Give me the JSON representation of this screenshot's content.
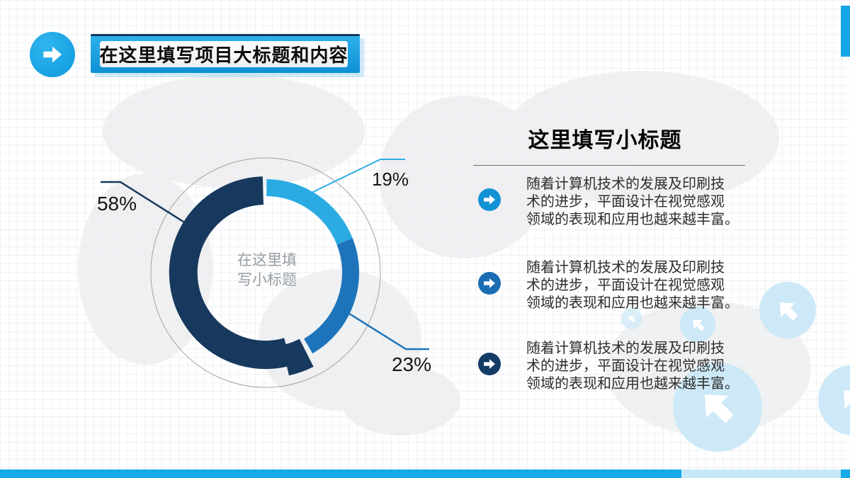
{
  "header": {
    "title": "在这里填写项目大标题和内容"
  },
  "chart_data": {
    "type": "donut",
    "units": "percent",
    "start_at": "top",
    "direction": "clockwise",
    "outer_guide_ring": true,
    "center_lines": [
      "在这里填",
      "写小标题"
    ],
    "center_label": "在这里填写小标题",
    "segments": [
      {
        "label": "19%",
        "value": 19,
        "color": "#2aabe2"
      },
      {
        "label": "23%",
        "value": 23,
        "color": "#1d74ba"
      },
      {
        "label": "58%",
        "value": 58,
        "color": "#17395e"
      }
    ]
  },
  "panel": {
    "title": "这里填写小标题",
    "bullets": [
      {
        "icon": "arrow-right-circle",
        "icon_color": "#1292d5",
        "lines": [
          "随着计算机技术的发展及印刷技",
          "术的进步，平面设计在视觉感观",
          "领域的表现和应用也越来越丰富。"
        ]
      },
      {
        "icon": "arrow-right-circle",
        "icon_color": "#1b6db3",
        "lines": [
          "随着计算机技术的发展及印刷技",
          "术的进步，平面设计在视觉感观",
          "领域的表现和应用也越来越丰富。"
        ]
      },
      {
        "icon": "arrow-right-circle",
        "icon_color": "#133c66",
        "lines": [
          "随着计算机技术的发展及印刷技",
          "术的进步，平面设计在视觉感观",
          "领域的表现和应用也越来越丰富。"
        ]
      }
    ]
  },
  "decor": {
    "accent": "#14a5e6",
    "pale_circle": "#cde9f8"
  }
}
